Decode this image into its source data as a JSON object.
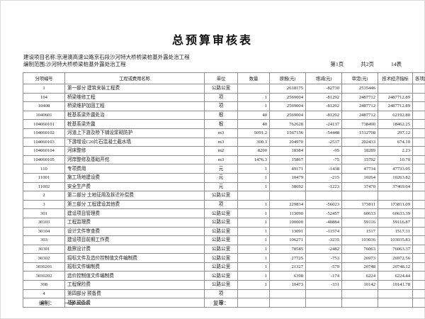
{
  "page": {
    "title": "总预算审核表",
    "project_line": "建设项目名称:京港澳高速公路京石段沙河特大桥桥梁桩基外露处治工程",
    "scope_line": "编制范围:沙河特大桥桥梁桩基外露处治工程",
    "page_no": "第1页",
    "total_pages": "共2页",
    "table_no": "14表",
    "footer": {
      "prepared_label": "编制：",
      "first_audit": "一审:admin",
      "second_audit_label": "复审："
    }
  },
  "table": {
    "headers": [
      "分项编号",
      "工程或费用名称",
      "单位",
      "数量",
      "原报(元)",
      "增减(元)",
      "审定(元)",
      "技术经济指标",
      "各项费用比例(%)"
    ],
    "rows": [
      [
        "1",
        "第一部分 建筑安装工程费",
        "公路公里",
        "",
        "2618175",
        "-82730",
        "2535446",
        "",
        "93.58"
      ],
      [
        "104",
        "桥梁维修工程",
        "项",
        "1",
        "2569004",
        "-81292",
        "2487712",
        "2487712.89",
        "91.82"
      ],
      [
        "10408",
        "桥梁维护加固工程",
        "项",
        "1",
        "2569004",
        "-81292",
        "2487712",
        "2487712.89",
        ""
      ],
      [
        "1040601",
        "桩基系梁外露处治",
        "根",
        "40",
        "2569004",
        "-81292",
        "2487712",
        "62192.80",
        ""
      ],
      [
        "104060101",
        "桩基系梁外露",
        "根",
        "40",
        "762628",
        "-24137",
        "738490",
        "18462.25",
        ""
      ],
      [
        "104060102",
        "河道上下游及桥下铺设浆砌防护",
        "m3",
        "5091.2",
        "1567156",
        "-54448",
        "1512708",
        "297.12",
        ""
      ],
      [
        "104060103",
        "下游增设C20片石混凝土截水墙",
        "m3",
        "300.3",
        "204970",
        "-2537",
        "202433",
        "674.10",
        ""
      ],
      [
        "104060104",
        "河床整修",
        "m2",
        "8200",
        "18384",
        "-95",
        "18289",
        "2.23",
        ""
      ],
      [
        "104060105",
        "河岸整修及基础开挖",
        "m3",
        "1476.3",
        "15867",
        "-75",
        "15792",
        "10.70",
        ""
      ],
      [
        "110",
        "专项费用",
        "元",
        "1",
        "49171",
        "-1438",
        "47734",
        "47733.95",
        "1.76"
      ],
      [
        "11001",
        "施工场地建设费",
        "元",
        "1",
        "10479",
        "-215",
        "10264",
        "10263.82",
        ""
      ],
      [
        "11002",
        "安全生产费",
        "元",
        "1",
        "38692",
        "-1223",
        "37470",
        "37469.64",
        ""
      ],
      [
        "2",
        "第二部分 土地征用及拆迁补偿费",
        "公路公里",
        "",
        "",
        "",
        "",
        "",
        ""
      ],
      [
        "3",
        "第三部分 工程建设其他费",
        "项",
        "1",
        "229834",
        "-56023",
        "173811",
        "173811.09",
        "6.42"
      ],
      [
        "301",
        "建设项目管理费",
        "公路公里",
        "1",
        "113090",
        "-52457",
        "60633",
        "60633.39",
        "2.24"
      ],
      [
        "30103",
        "工程监理费",
        "公路公里",
        "1",
        "100000",
        "-40884",
        "59116",
        "59116.87",
        ""
      ],
      [
        "30104",
        "设计文件审查费",
        "公路公里",
        "1",
        "13091",
        "-11574",
        "1517",
        "1517.31",
        ""
      ],
      [
        "303",
        "建设项目前期工作费",
        "公路公里",
        "1",
        "106271",
        "-3235",
        "103036",
        "103035.83",
        "3.80"
      ],
      [
        "30301",
        "勘察设计费",
        "公路公里",
        "1",
        "78545",
        "-2482",
        "76063",
        "76063.37",
        ""
      ],
      [
        "30302",
        "招标文件及造价控制值文件编制费",
        "公路公里",
        "1",
        "27725",
        "-753",
        "26973",
        "26972.56",
        ""
      ],
      [
        "3030201",
        "招标文件编制费",
        "公路公里",
        "1",
        "21327",
        "-579",
        "20748",
        "20748.12",
        ""
      ],
      [
        "3030202",
        "造价控制值文件编制费",
        "公路公里",
        "1",
        "6398",
        "-174",
        "6224",
        "6224.44",
        ""
      ],
      [
        "308",
        "工程保险费",
        "公路公里",
        "1",
        "10473",
        "-331",
        "10142",
        "10141.78",
        "0.37"
      ],
      [
        "4",
        "第四部分 预备费",
        "项",
        "",
        "",
        "",
        "",
        "",
        ""
      ],
      [
        "401",
        "基本预备费",
        "项",
        "",
        "",
        "",
        "",
        "",
        ""
      ]
    ]
  }
}
